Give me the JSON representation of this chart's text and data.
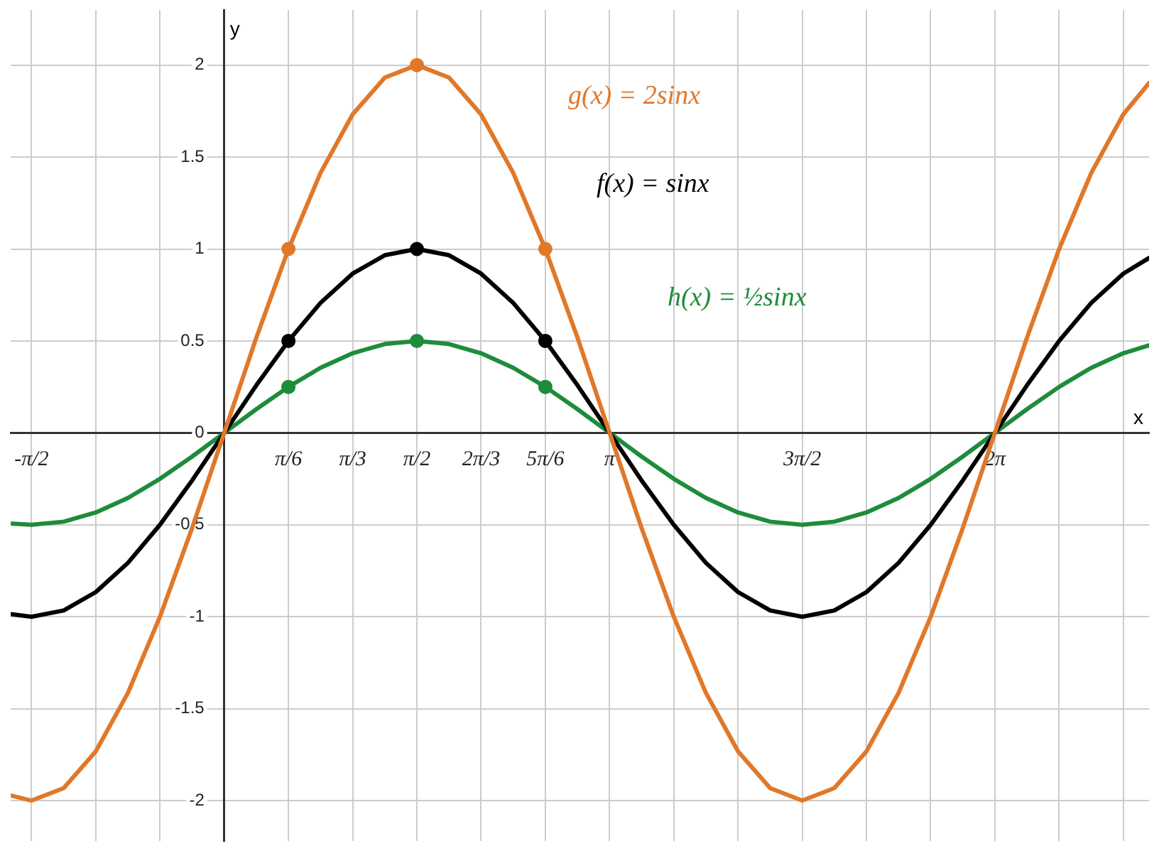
{
  "chart_data": {
    "type": "line",
    "xlabel": "x",
    "ylabel": "y",
    "grid": true,
    "legend": false,
    "marker": "none",
    "line_style": "solid",
    "xlim": [
      -1.74,
      7.54
    ],
    "ylim": [
      -2.22,
      2.3
    ],
    "xticks": [
      {
        "value": -1.5708,
        "label": "-π/2"
      },
      {
        "value": -1.0472,
        "label": null
      },
      {
        "value": -0.5236,
        "label": null
      },
      {
        "value": 0,
        "label": null
      },
      {
        "value": 0.5236,
        "label": "π/6"
      },
      {
        "value": 1.0472,
        "label": "π/3"
      },
      {
        "value": 1.5708,
        "label": "π/2"
      },
      {
        "value": 2.0944,
        "label": "2π/3"
      },
      {
        "value": 2.618,
        "label": "5π/6"
      },
      {
        "value": 3.1416,
        "label": "π"
      },
      {
        "value": 3.6652,
        "label": null
      },
      {
        "value": 4.1888,
        "label": null
      },
      {
        "value": 4.7124,
        "label": "3π/2"
      },
      {
        "value": 5.236,
        "label": null
      },
      {
        "value": 5.7596,
        "label": null
      },
      {
        "value": 6.2832,
        "label": "2π"
      },
      {
        "value": 6.8068,
        "label": null
      },
      {
        "value": 7.3304,
        "label": null
      }
    ],
    "yticks": [
      -2,
      -1.5,
      -1,
      -0.5,
      0,
      0.5,
      1,
      1.5,
      2
    ],
    "x": [
      -1.74,
      -1.571,
      -1.309,
      -1.047,
      -0.785,
      -0.524,
      -0.262,
      0,
      0.262,
      0.524,
      0.785,
      1.047,
      1.309,
      1.571,
      1.833,
      2.094,
      2.356,
      2.618,
      2.88,
      3.142,
      3.403,
      3.665,
      3.927,
      4.189,
      4.451,
      4.712,
      4.974,
      5.236,
      5.498,
      5.76,
      6.021,
      6.283,
      6.545,
      6.807,
      7.069,
      7.33,
      7.54
    ],
    "series": [
      {
        "name": "g(x) = 2sinx",
        "color": "#e0782a",
        "values": [
          -1.972,
          -2,
          -1.932,
          -1.732,
          -1.414,
          -1,
          -0.518,
          0,
          0.518,
          1,
          1.414,
          1.732,
          1.932,
          2,
          1.932,
          1.732,
          1.414,
          1,
          0.518,
          0,
          -0.518,
          -1,
          -1.414,
          -1.732,
          -1.932,
          -2,
          -1.932,
          -1.732,
          -1.414,
          -1,
          -0.518,
          0,
          0.518,
          1,
          1.414,
          1.732,
          1.902
        ]
      },
      {
        "name": "f(x) = sinx",
        "color": "#000000",
        "values": [
          -0.986,
          -1,
          -0.966,
          -0.866,
          -0.707,
          -0.5,
          -0.259,
          0,
          0.259,
          0.5,
          0.707,
          0.866,
          0.966,
          1,
          0.966,
          0.866,
          0.707,
          0.5,
          0.259,
          0,
          -0.259,
          -0.5,
          -0.707,
          -0.866,
          -0.966,
          -1,
          -0.966,
          -0.866,
          -0.707,
          -0.5,
          -0.259,
          0,
          0.259,
          0.5,
          0.707,
          0.866,
          0.951
        ]
      },
      {
        "name": "h(x) = ½sinx",
        "color": "#1e8c3a",
        "values": [
          -0.493,
          -0.5,
          -0.483,
          -0.433,
          -0.354,
          -0.25,
          -0.129,
          0,
          0.129,
          0.25,
          0.354,
          0.433,
          0.483,
          0.5,
          0.483,
          0.433,
          0.354,
          0.25,
          0.129,
          0,
          -0.129,
          -0.25,
          -0.354,
          -0.433,
          -0.483,
          -0.5,
          -0.483,
          -0.433,
          -0.354,
          -0.25,
          -0.129,
          0,
          0.129,
          0.25,
          0.354,
          0.433,
          0.476
        ]
      },
      {
        "type": "scatter",
        "marker": "circle",
        "color": "#e0782a",
        "x": [
          0.5236,
          1.5708,
          2.618
        ],
        "values": [
          1,
          2,
          1
        ]
      },
      {
        "type": "scatter",
        "marker": "circle",
        "color": "#000000",
        "x": [
          0.5236,
          1.5708,
          2.618
        ],
        "values": [
          0.5,
          1,
          0.5
        ]
      },
      {
        "type": "scatter",
        "marker": "circle",
        "color": "#1e8c3a",
        "x": [
          0.5236,
          1.5708,
          2.618
        ],
        "values": [
          0.25,
          0.5,
          0.25
        ]
      }
    ]
  }
}
